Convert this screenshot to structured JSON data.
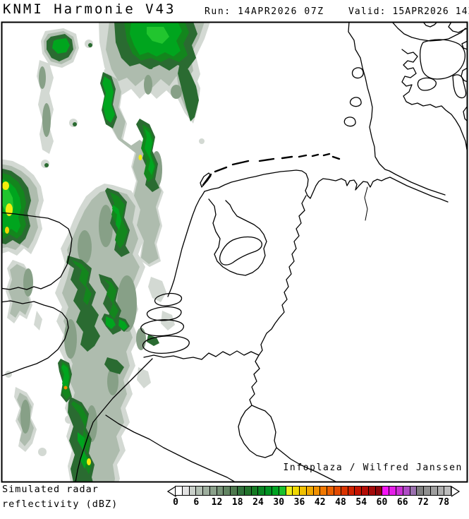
{
  "header": {
    "title": "KNMI Harmonie V43",
    "run_label": "Run:",
    "run_value": "14APR2026 07Z",
    "valid_label": "Valid:",
    "valid_value": "15APR2026 14Z"
  },
  "map": {
    "attribution": "Infoplaza / Wilfred Janssen"
  },
  "legend": {
    "label_line1": "Simulated radar",
    "label_line2": "reflectivity (dBZ)",
    "unit": "dBZ",
    "tick_labels": [
      "0",
      "6",
      "12",
      "18",
      "24",
      "30",
      "36",
      "42",
      "48",
      "54",
      "60",
      "66",
      "72",
      "78"
    ],
    "cell_colors": [
      "#ffffff",
      "#e2e2e2",
      "#c9cfc9",
      "#b2beb2",
      "#9eae9e",
      "#8aa08a",
      "#769276",
      "#628462",
      "#4e784e",
      "#30703a",
      "#23722c",
      "#147a22",
      "#088422",
      "#009222",
      "#00a322",
      "#19bf2b",
      "#eeee1c",
      "#f0d800",
      "#f0c000",
      "#f0a800",
      "#f09000",
      "#f07800",
      "#ea6000",
      "#e24a00",
      "#da3400",
      "#cf2200",
      "#c41400",
      "#b40e06",
      "#a30a0a",
      "#8e060c",
      "#f414f4",
      "#e41ee8",
      "#ca30d4",
      "#ae4cc4",
      "#9a70ae",
      "#7e7e7e",
      "#8e8e8e",
      "#9e9e9e",
      "#acacac",
      "#bcbcbc"
    ]
  }
}
